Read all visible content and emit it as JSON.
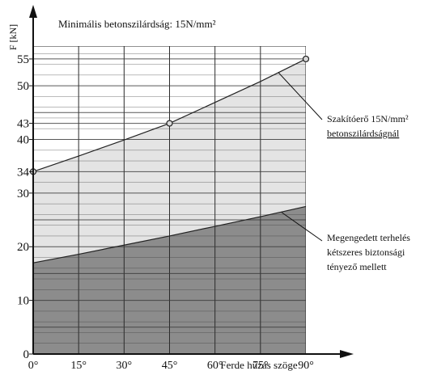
{
  "chart_data": {
    "type": "area",
    "title": "Minimális betonszilárdság: 15N/mm²",
    "xlabel": "Ferde húzás szöge",
    "ylabel": "F [kN]",
    "x_ticks": [
      "0°",
      "15°",
      "30°",
      "45°",
      "60°",
      "75°",
      "90°"
    ],
    "x": [
      0,
      15,
      30,
      45,
      60,
      75,
      90
    ],
    "xlim": [
      0,
      90
    ],
    "ylim": [
      0,
      55
    ],
    "y_ticks": [
      0,
      10,
      20,
      30,
      34,
      40,
      43,
      50,
      55
    ],
    "grid": true,
    "series": [
      {
        "key": "break",
        "name": "Szakítóerő 15N/mm² betonszilárdságnál",
        "values": [
          34,
          36.9,
          39.9,
          43,
          46.9,
          50.8,
          55
        ],
        "marker_indices": [
          0,
          3,
          6
        ],
        "color": "#e4e4e4"
      },
      {
        "key": "allowed",
        "name": "Megengedett terhelés kétszeres biztonsági tényező mellett",
        "values": [
          17,
          18.6,
          20.3,
          22,
          23.8,
          25.6,
          27.5
        ],
        "color": "#8c8c8c"
      }
    ],
    "annotations": {
      "break": [
        "Szakítóerő 15N/mm²",
        "betonszilárdságnál"
      ],
      "allowed": [
        "Megengedett terhelés",
        "kétszeres biztonsági",
        "tényező mellett"
      ]
    }
  }
}
